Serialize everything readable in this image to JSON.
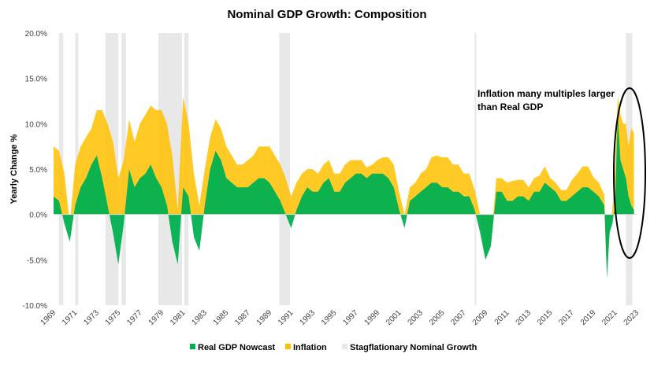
{
  "chart_data": {
    "type": "area",
    "title": "Nominal GDP Growth: Composition",
    "xlabel": "",
    "ylabel": "Yearly Change %",
    "ylim": [
      -10,
      20
    ],
    "xlim": [
      1969,
      2023
    ],
    "yticks": [
      20,
      15,
      10,
      5,
      0,
      -5,
      -10
    ],
    "ytick_labels": [
      "20.0%",
      "15.0%",
      "10.0%",
      "5.0%",
      "0.0%",
      "-5.0%",
      "-10.0%"
    ],
    "xtick_labels": [
      "1969",
      "1971",
      "1973",
      "1975",
      "1977",
      "1979",
      "1981",
      "1983",
      "1985",
      "1987",
      "1989",
      "1991",
      "1993",
      "1995",
      "1997",
      "1999",
      "2001",
      "2003",
      "2005",
      "2007",
      "2009",
      "2011",
      "2013",
      "2015",
      "2017",
      "2019",
      "2021",
      "2023"
    ],
    "grid": false,
    "legend_position": "bottom",
    "colors": {
      "real": "#00b050",
      "inflation": "#ffc000",
      "stagflation": "#e8e8e8"
    },
    "legend": [
      "Real GDP Nowcast",
      "Inflation",
      "Stagflationary Nominal Growth"
    ],
    "x": [
      1969,
      1969.5,
      1970,
      1970.5,
      1971,
      1971.5,
      1972,
      1972.5,
      1973,
      1973.5,
      1974,
      1974.5,
      1975,
      1975.5,
      1976,
      1976.5,
      1977,
      1977.5,
      1978,
      1978.5,
      1979,
      1979.5,
      1980,
      1980.5,
      1981,
      1981.5,
      1982,
      1982.5,
      1983,
      1983.5,
      1984,
      1984.5,
      1985,
      1985.5,
      1986,
      1986.5,
      1987,
      1987.5,
      1988,
      1988.5,
      1989,
      1989.5,
      1990,
      1990.5,
      1991,
      1991.5,
      1992,
      1992.5,
      1993,
      1993.5,
      1994,
      1994.5,
      1995,
      1995.5,
      1996,
      1996.5,
      1997,
      1997.5,
      1998,
      1998.5,
      1999,
      1999.5,
      2000,
      2000.5,
      2001,
      2001.5,
      2002,
      2002.5,
      2003,
      2003.5,
      2004,
      2004.5,
      2005,
      2005.5,
      2006,
      2006.5,
      2007,
      2007.5,
      2008,
      2008.5,
      2009,
      2009.5,
      2010,
      2010.5,
      2011,
      2011.5,
      2012,
      2012.5,
      2013,
      2013.5,
      2014,
      2014.5,
      2015,
      2015.5,
      2016,
      2016.5,
      2017,
      2017.5,
      2018,
      2018.5,
      2019,
      2019.5,
      2020,
      2020.25,
      2020.5,
      2020.75,
      2021,
      2021.25,
      2021.5,
      2021.75,
      2022,
      2022.25,
      2022.5,
      2022.75
    ],
    "series": [
      {
        "name": "Real GDP Nowcast",
        "values": [
          2,
          1.5,
          -1,
          -3,
          1,
          3,
          4,
          5.5,
          6.5,
          4,
          1,
          -2,
          -5.5,
          -1,
          5,
          3,
          4,
          4.5,
          5.5,
          4,
          3,
          1,
          -3,
          -5.5,
          3,
          2,
          -2.5,
          -4,
          1,
          5,
          7,
          6,
          4,
          3.5,
          3,
          3,
          3,
          3.5,
          4,
          4,
          3.5,
          2.5,
          1.5,
          0,
          -1.5,
          0.5,
          2,
          3,
          2.5,
          2.5,
          3.5,
          4,
          2.5,
          2.5,
          3.5,
          4,
          4.5,
          4.5,
          4,
          4.5,
          4.5,
          4.5,
          4,
          3,
          0.5,
          -1.5,
          1.5,
          2,
          2.5,
          3,
          3.5,
          3.5,
          3,
          3,
          2.5,
          2.5,
          2,
          2,
          0.5,
          -2,
          -5,
          -3.5,
          2.5,
          2.5,
          1.5,
          1.5,
          2,
          2,
          1.5,
          2.5,
          2.5,
          3.5,
          3,
          2.5,
          1.5,
          1.5,
          2,
          2.5,
          3,
          3,
          2.5,
          2,
          1,
          -7,
          -2,
          -1,
          1,
          11,
          6,
          5,
          4,
          2,
          1,
          0.5
        ]
      },
      {
        "name": "Inflation",
        "values": [
          5.5,
          5.5,
          5.5,
          2,
          4.5,
          4.5,
          4.5,
          4,
          5,
          7.5,
          9,
          10,
          9.5,
          7,
          5.5,
          5,
          6,
          6.5,
          6.5,
          7.5,
          8.5,
          9,
          9.5,
          6,
          10,
          8,
          7,
          5,
          4,
          3.5,
          3.5,
          3.5,
          3.5,
          3,
          2.5,
          2.5,
          3,
          3,
          3.5,
          3.5,
          4,
          4,
          4,
          4,
          3.5,
          3,
          2.5,
          2,
          2.5,
          2,
          2,
          2,
          2,
          2,
          2,
          2,
          1.5,
          1.5,
          1.2,
          1,
          1.5,
          1.8,
          2.3,
          2.5,
          2,
          1.5,
          1.5,
          1.5,
          2,
          2,
          2.8,
          3,
          3.3,
          3.3,
          3,
          3,
          2.5,
          2.5,
          2.2,
          2,
          0.5,
          0.5,
          1.5,
          1.5,
          2,
          2.2,
          1.8,
          1.8,
          1.5,
          1.5,
          1.8,
          1.8,
          1,
          1,
          1.2,
          1.2,
          1.8,
          2,
          2.3,
          2.3,
          1.6,
          1.5,
          1.2,
          1,
          1.2,
          1.5,
          4,
          2,
          5,
          5,
          6,
          5.5,
          8.5,
          8.5
        ]
      }
    ],
    "stagflation_periods": [
      [
        1969.5,
        1969.9
      ],
      [
        1971.0,
        1971.3
      ],
      [
        1973.8,
        1975.0
      ],
      [
        1975.3,
        1975.7
      ],
      [
        1978.7,
        1980.9
      ],
      [
        1981.1,
        1981.5
      ],
      [
        1989.9,
        1990.9
      ],
      [
        2008.0,
        2008.15
      ],
      [
        2022.0,
        2022.6
      ]
    ],
    "annotation": {
      "line1": "Inflation many multiples larger",
      "line2": "than Real GDP",
      "highlight_period": [
        2020.5,
        2023
      ]
    }
  }
}
